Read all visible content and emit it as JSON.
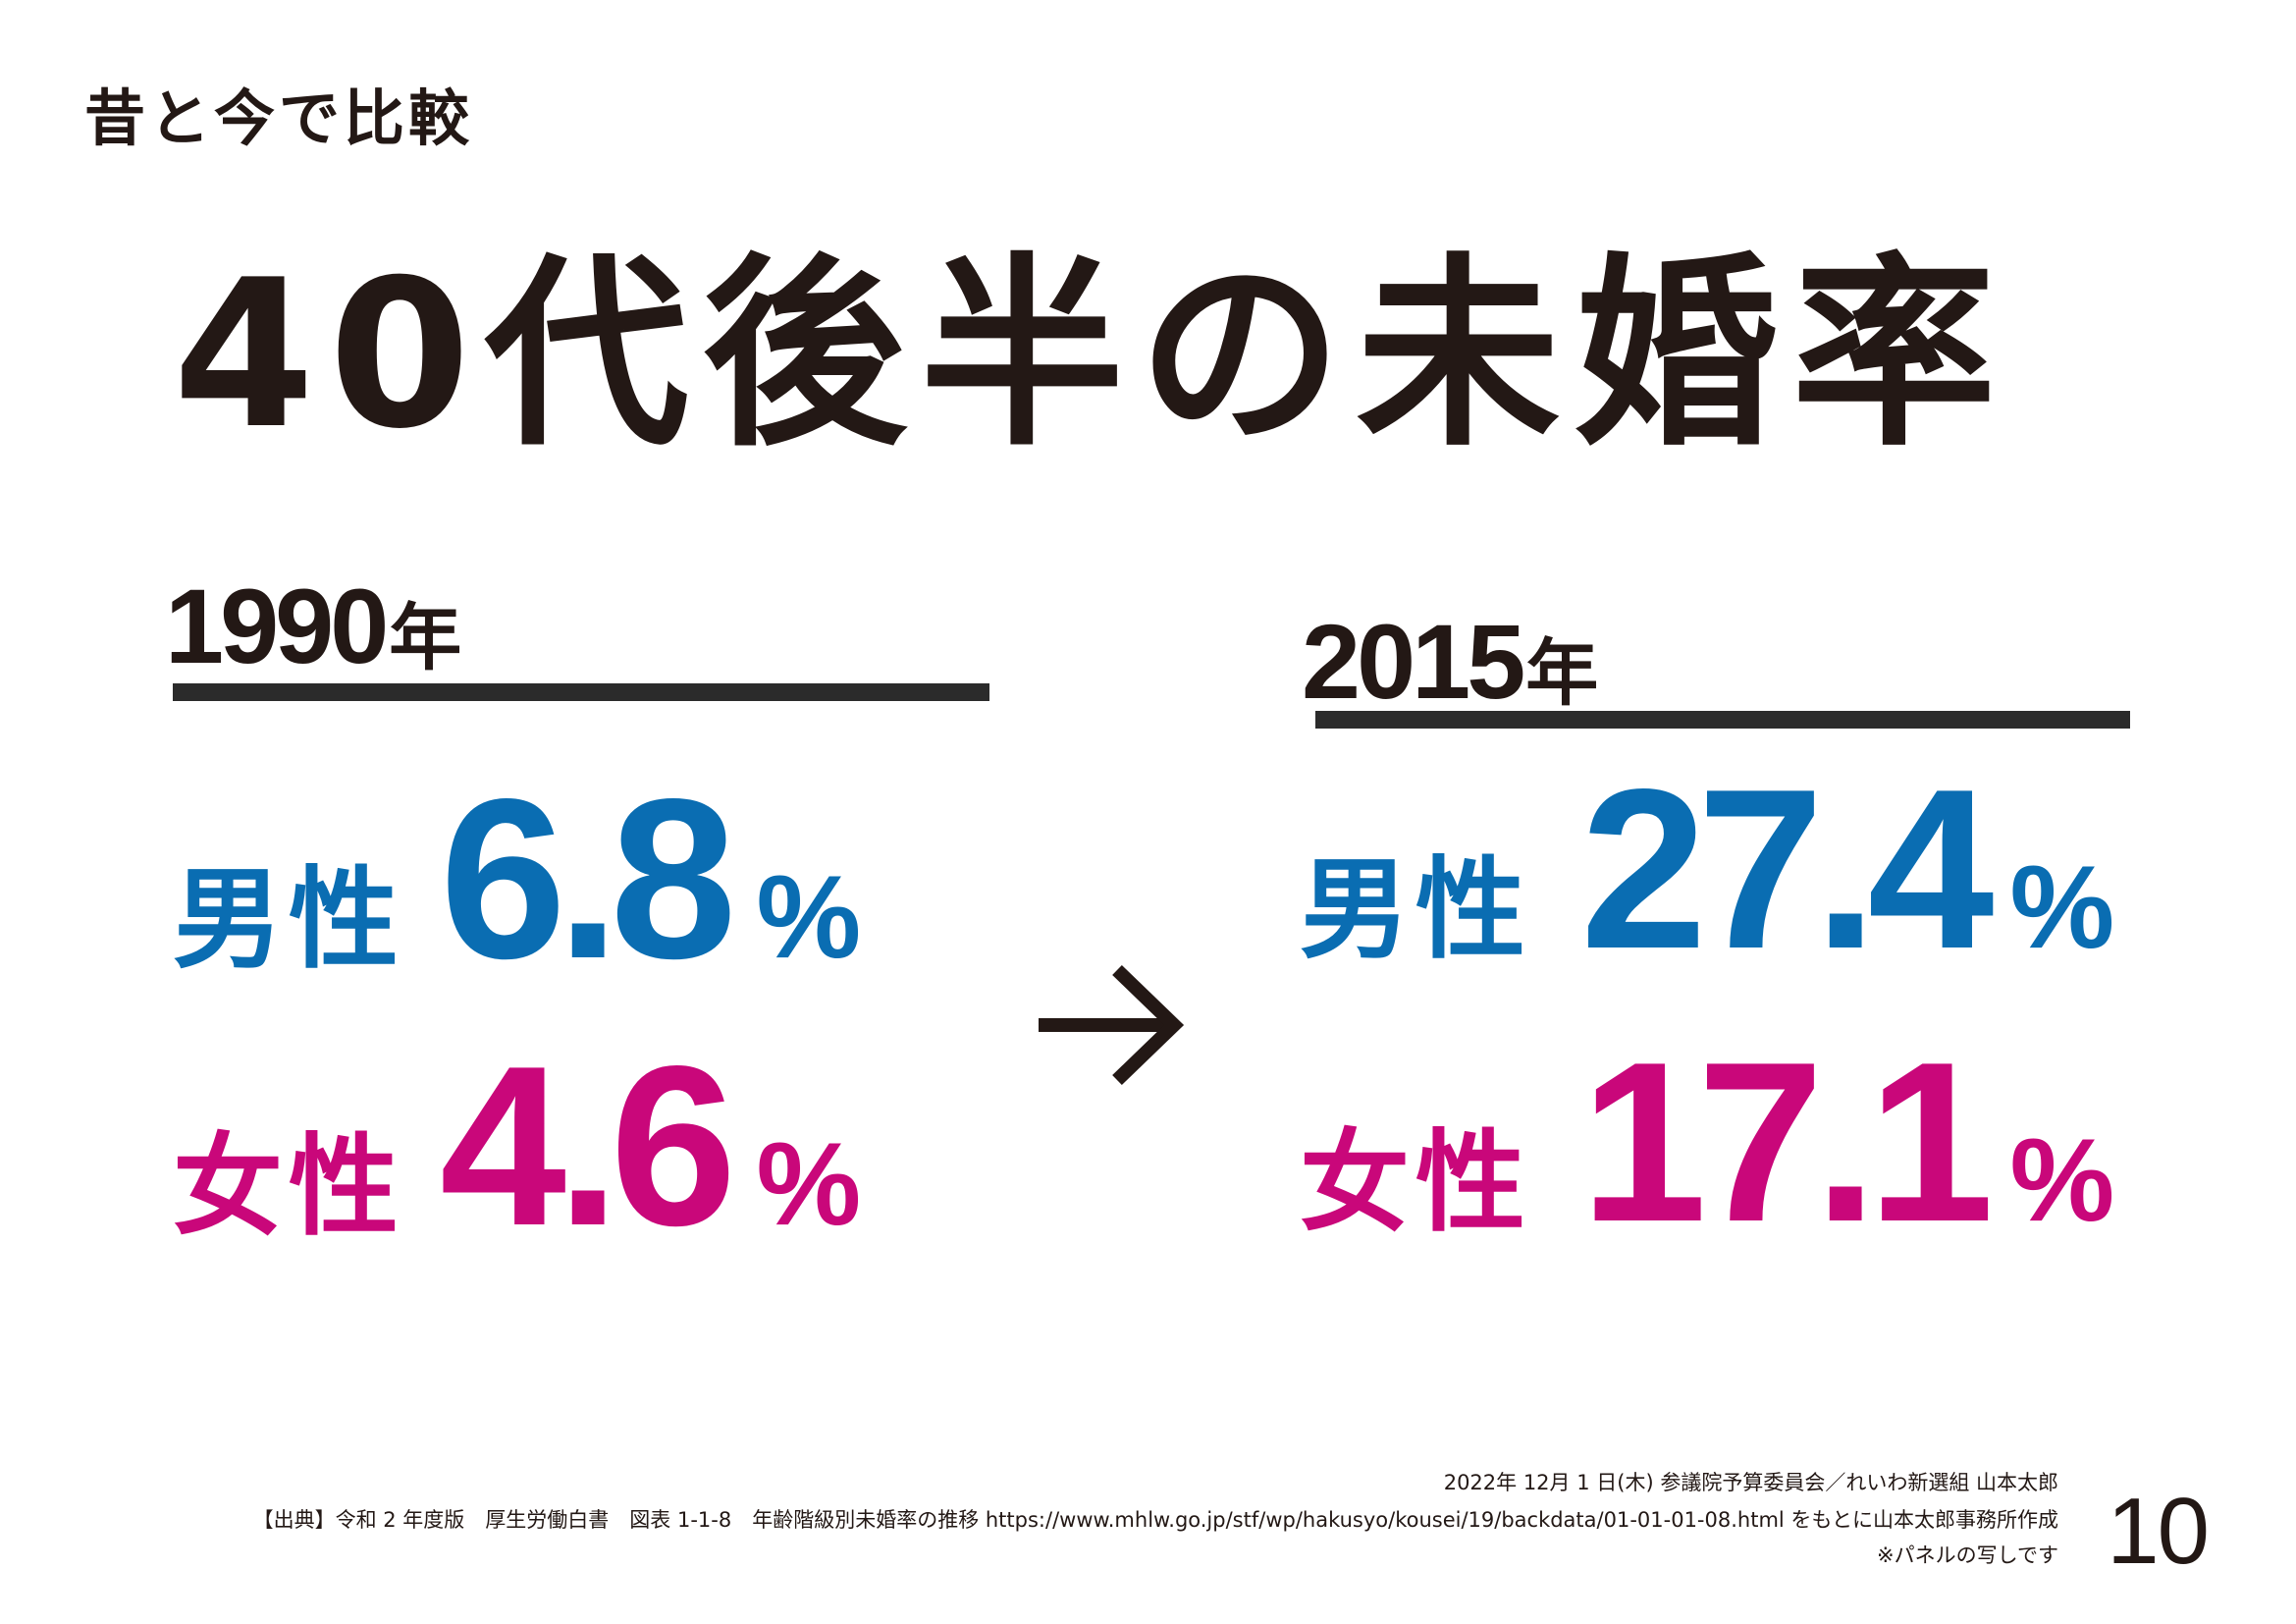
{
  "header": {
    "subtitle": "昔と今で比較",
    "title": "40代後半の未婚率"
  },
  "before": {
    "year": "1990",
    "year_suffix": "年",
    "male_label": "男性",
    "male_value": "6.8",
    "female_label": "女性",
    "female_value": "4.6",
    "unit": "%"
  },
  "after": {
    "year": "2015",
    "year_suffix": "年",
    "male_label": "男性",
    "male_value": "27.4",
    "female_label": "女性",
    "female_value": "17.1",
    "unit": "%"
  },
  "arrow_icon": "right-arrow-icon",
  "colors": {
    "male": "#0a6db2",
    "female": "#c9077a",
    "text": "#231815",
    "rule": "#2b2b2b"
  },
  "footer": {
    "credit": "2022年 12月 1 日(木) 参議院予算委員会／れいわ新選組 山本太郎",
    "source": "【出典】令和 2 年度版　厚生労働白書　図表 1-1-8　年齢階級別未婚率の推移 https://www.mhlw.go.jp/stf/wp/hakusyo/kousei/19/backdata/01-01-01-08.html をもとに山本太郎事務所作成",
    "note": "※パネルの写しです",
    "page_number": "10"
  }
}
